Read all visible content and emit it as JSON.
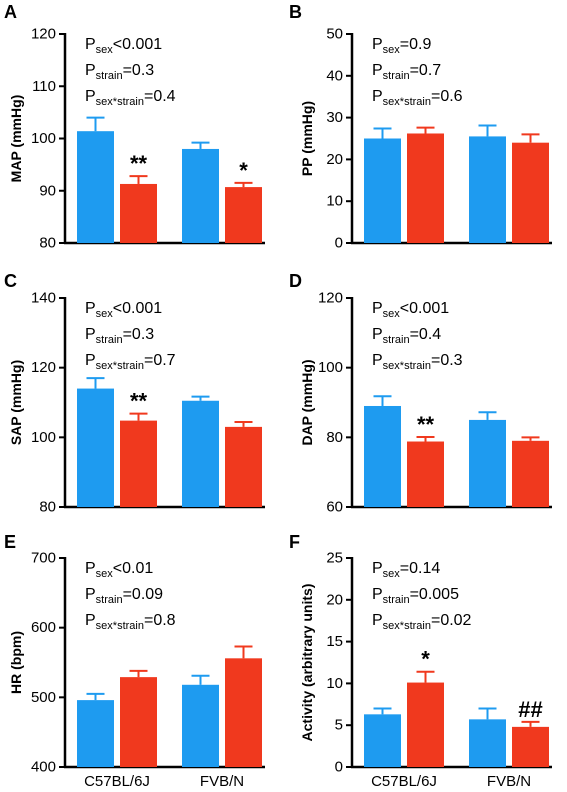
{
  "colors": {
    "male": "#1e9bf0",
    "female": "#f0391e",
    "axis": "#000000"
  },
  "chart_data": [
    {
      "type": "bar",
      "panel": "A",
      "ylabel": "MAP (mmHg)",
      "ylim": [
        80,
        120
      ],
      "yticks": [
        "80",
        "90",
        "100",
        "110",
        "120"
      ],
      "categories": [
        "C57BL/6J",
        "FVB/N"
      ],
      "series": [
        {
          "color_key": "male",
          "values": [
            101.4,
            98.0
          ],
          "errors": [
            2.6,
            1.2
          ]
        },
        {
          "color_key": "female",
          "values": [
            91.3,
            90.7
          ],
          "errors": [
            1.5,
            0.8
          ]
        }
      ],
      "significance": [
        {
          "category": 0,
          "series": 1,
          "label": "**"
        },
        {
          "category": 1,
          "series": 1,
          "label": "*"
        }
      ],
      "stats": [
        {
          "p": "P",
          "sub": "sex",
          "rest": "<0.001"
        },
        {
          "p": "P",
          "sub": "strain",
          "rest": "=0.3"
        },
        {
          "p": "P",
          "sub": "sex*strain",
          "rest": "=0.4"
        }
      ]
    },
    {
      "type": "bar",
      "panel": "B",
      "ylabel": "PP (mmHg)",
      "ylim": [
        0,
        50
      ],
      "yticks": [
        "0",
        "10",
        "20",
        "30",
        "40",
        "50"
      ],
      "categories": [
        "C57BL/6J",
        "FVB/N"
      ],
      "series": [
        {
          "color_key": "male",
          "values": [
            25.0,
            25.5
          ],
          "errors": [
            2.4,
            2.6
          ]
        },
        {
          "color_key": "female",
          "values": [
            26.2,
            24.0
          ],
          "errors": [
            1.4,
            2.0
          ]
        }
      ],
      "significance": [],
      "stats": [
        {
          "p": "P",
          "sub": "sex",
          "rest": "=0.9"
        },
        {
          "p": "P",
          "sub": "strain",
          "rest": "=0.7"
        },
        {
          "p": "P",
          "sub": "sex*strain",
          "rest": "=0.6"
        }
      ]
    },
    {
      "type": "bar",
      "panel": "C",
      "ylabel": "SAP (mmHg)",
      "ylim": [
        80,
        140
      ],
      "yticks": [
        "80",
        "100",
        "120",
        "140"
      ],
      "categories": [
        "C57BL/6J",
        "FVB/N"
      ],
      "series": [
        {
          "color_key": "male",
          "values": [
            114.0,
            110.5
          ],
          "errors": [
            3.0,
            1.2
          ]
        },
        {
          "color_key": "female",
          "values": [
            104.8,
            103.0
          ],
          "errors": [
            2.0,
            1.4
          ]
        }
      ],
      "significance": [
        {
          "category": 0,
          "series": 1,
          "label": "**"
        }
      ],
      "stats": [
        {
          "p": "P",
          "sub": "sex",
          "rest": "<0.001"
        },
        {
          "p": "P",
          "sub": "strain",
          "rest": "=0.3"
        },
        {
          "p": "P",
          "sub": "sex*strain",
          "rest": "=0.7"
        }
      ]
    },
    {
      "type": "bar",
      "panel": "D",
      "ylabel": "DAP (mmHg)",
      "ylim": [
        60,
        120
      ],
      "yticks": [
        "60",
        "80",
        "100",
        "120"
      ],
      "categories": [
        "C57BL/6J",
        "FVB/N"
      ],
      "series": [
        {
          "color_key": "male",
          "values": [
            89.0,
            85.0
          ],
          "errors": [
            2.8,
            2.2
          ]
        },
        {
          "color_key": "female",
          "values": [
            78.8,
            79.0
          ],
          "errors": [
            1.3,
            1.0
          ]
        }
      ],
      "significance": [
        {
          "category": 0,
          "series": 1,
          "label": "**"
        }
      ],
      "stats": [
        {
          "p": "P",
          "sub": "sex",
          "rest": "<0.001"
        },
        {
          "p": "P",
          "sub": "strain",
          "rest": "=0.4"
        },
        {
          "p": "P",
          "sub": "sex*strain",
          "rest": "=0.3"
        }
      ]
    },
    {
      "type": "bar",
      "panel": "E",
      "ylabel": "HR (bpm)",
      "ylim": [
        400,
        700
      ],
      "yticks": [
        "400",
        "500",
        "600",
        "700"
      ],
      "categories": [
        "C57BL/6J",
        "FVB/N"
      ],
      "series": [
        {
          "color_key": "male",
          "values": [
            496,
            518
          ],
          "errors": [
            9,
            13
          ]
        },
        {
          "color_key": "female",
          "values": [
            529,
            556
          ],
          "errors": [
            9,
            17
          ]
        }
      ],
      "significance": [],
      "stats": [
        {
          "p": "P",
          "sub": "sex",
          "rest": "<0.01"
        },
        {
          "p": "P",
          "sub": "strain",
          "rest": "=0.09"
        },
        {
          "p": "P",
          "sub": "sex*strain",
          "rest": "=0.8"
        }
      ]
    },
    {
      "type": "bar",
      "panel": "F",
      "ylabel": "Activity (arbitrary units)",
      "ylim": [
        0,
        25
      ],
      "yticks": [
        "0",
        "5",
        "10",
        "15",
        "20",
        "25"
      ],
      "categories": [
        "C57BL/6J",
        "FVB/N"
      ],
      "series": [
        {
          "color_key": "male",
          "values": [
            6.3,
            5.7
          ],
          "errors": [
            0.7,
            1.3
          ]
        },
        {
          "color_key": "female",
          "values": [
            10.1,
            4.8
          ],
          "errors": [
            1.3,
            0.6
          ]
        }
      ],
      "significance": [
        {
          "category": 0,
          "series": 1,
          "label": "*"
        },
        {
          "category": 1,
          "series": 1,
          "label": "##"
        }
      ],
      "stats": [
        {
          "p": "P",
          "sub": "sex",
          "rest": "=0.14"
        },
        {
          "p": "P",
          "sub": "strain",
          "rest": "=0.005"
        },
        {
          "p": "P",
          "sub": "sex*strain",
          "rest": "=0.02"
        }
      ]
    }
  ]
}
